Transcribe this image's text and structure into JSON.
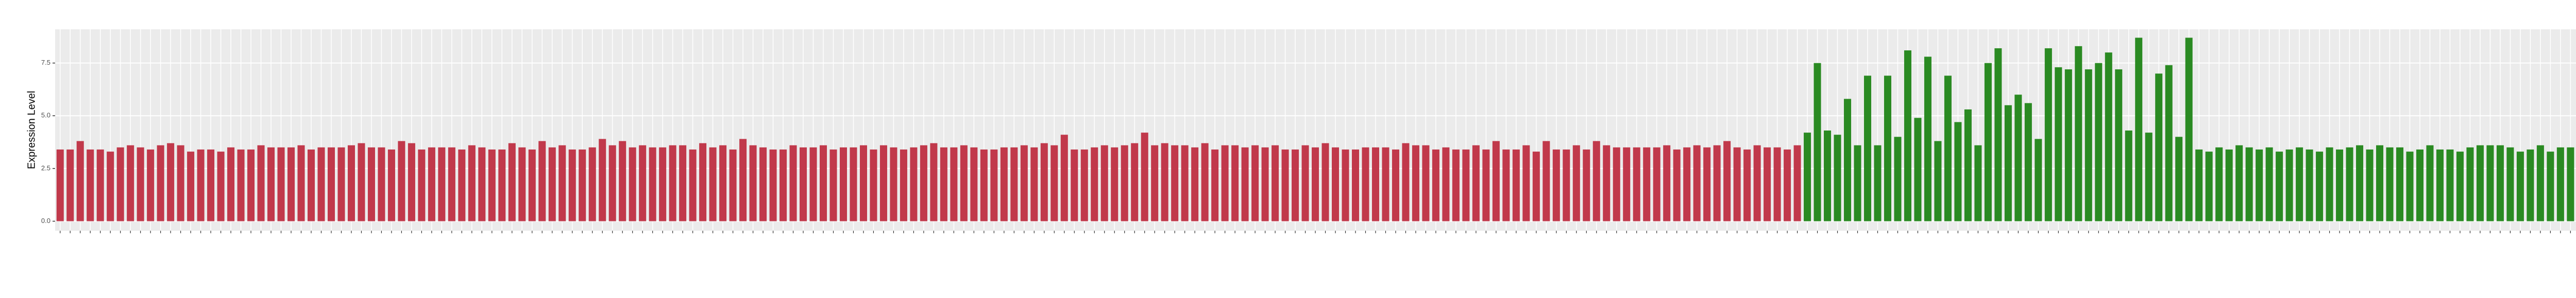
{
  "chart_data": {
    "type": "bar",
    "y_label": "Expression Level",
    "ylim": [
      -0.45,
      9.1
    ],
    "yticks": [
      {
        "value": 0,
        "label": "0.0"
      },
      2.5,
      {
        "value": 5,
        "label": "5.0"
      },
      7.5
    ],
    "grid": true,
    "values": [
      3.4,
      3.4,
      3.8,
      3.4,
      3.4,
      3.3,
      3.5,
      3.6,
      3.5,
      3.4,
      3.6,
      3.7,
      3.6,
      3.3,
      3.4,
      3.4,
      3.3,
      3.5,
      3.4,
      3.4,
      3.6,
      3.5,
      3.5,
      3.5,
      3.6,
      3.4,
      3.5,
      3.5,
      3.5,
      3.6,
      3.7,
      3.5,
      3.5,
      3.4,
      3.8,
      3.7,
      3.4,
      3.5,
      3.5,
      3.5,
      3.4,
      3.6,
      3.5,
      3.4,
      3.4,
      3.7,
      3.5,
      3.4,
      3.8,
      3.5,
      3.6,
      3.4,
      3.4,
      3.5,
      3.9,
      3.6,
      3.8,
      3.5,
      3.6,
      3.5,
      3.5,
      3.6,
      3.6,
      3.4,
      3.7,
      3.5,
      3.6,
      3.4,
      3.9,
      3.6,
      3.5,
      3.4,
      3.4,
      3.6,
      3.5,
      3.5,
      3.6,
      3.4,
      3.5,
      3.5,
      3.6,
      3.4,
      3.6,
      3.5,
      3.4,
      3.5,
      3.6,
      3.7,
      3.5,
      3.5,
      3.6,
      3.5,
      3.4,
      3.4,
      3.5,
      3.5,
      3.6,
      3.5,
      3.7,
      3.6,
      4.1,
      3.4,
      3.4,
      3.5,
      3.6,
      3.5,
      3.6,
      3.7,
      4.2,
      3.6,
      3.7,
      3.6,
      3.6,
      3.5,
      3.7,
      3.4,
      3.6,
      3.6,
      3.5,
      3.6,
      3.5,
      3.6,
      3.4,
      3.4,
      3.6,
      3.5,
      3.7,
      3.5,
      3.4,
      3.4,
      3.5,
      3.5,
      3.5,
      3.4,
      3.7,
      3.6,
      3.6,
      3.4,
      3.5,
      3.4,
      3.4,
      3.6,
      3.4,
      3.8,
      3.4,
      3.4,
      3.6,
      3.3,
      3.8,
      3.4,
      3.4,
      3.6,
      3.4,
      3.8,
      3.6,
      3.5,
      3.5,
      3.5,
      3.5,
      3.5,
      3.6,
      3.4,
      3.5,
      3.6,
      3.5,
      3.6,
      3.8,
      3.5,
      3.4,
      3.6,
      3.5,
      3.5,
      3.4,
      3.6,
      4.2,
      7.5,
      4.3,
      4.1,
      5.8,
      3.6,
      6.9,
      3.6,
      6.9,
      4.0,
      8.1,
      4.9,
      7.8,
      3.8,
      6.9,
      4.7,
      5.3,
      3.6,
      7.5,
      8.2,
      5.5,
      6.0,
      5.6,
      3.9,
      8.2,
      7.3,
      7.2,
      8.3,
      7.2,
      7.5,
      8.0,
      7.2,
      4.3,
      8.7,
      4.2,
      7.0,
      7.4,
      4.0,
      8.7,
      3.4,
      3.3,
      3.5,
      3.4,
      3.6,
      3.5,
      3.4,
      3.5,
      3.3,
      3.4,
      3.5,
      3.4,
      3.3,
      3.5,
      3.4,
      3.5,
      3.6,
      3.4,
      3.6,
      3.5,
      3.5,
      3.3,
      3.4,
      3.6,
      3.4,
      3.4,
      3.3,
      3.5,
      3.6,
      3.6,
      3.6,
      3.5,
      3.3,
      3.4,
      3.6,
      3.3,
      3.5,
      3.5,
      3.6,
      3.6,
      3.5,
      3.3,
      3.5,
      3.3,
      3.6,
      3.6
    ],
    "colors": [
      "#c1394b",
      "#c1394b",
      "#c1394b",
      "#c1394b",
      "#c1394b",
      "#c1394b",
      "#c1394b",
      "#c1394b",
      "#c1394b",
      "#c1394b",
      "#c1394b",
      "#c1394b",
      "#c1394b",
      "#c1394b",
      "#c1394b",
      "#c1394b",
      "#c1394b",
      "#c1394b",
      "#c1394b",
      "#c1394b",
      "#c1394b",
      "#c1394b",
      "#c1394b",
      "#c1394b",
      "#c1394b",
      "#c1394b",
      "#c1394b",
      "#c1394b",
      "#c1394b",
      "#c1394b",
      "#c1394b",
      "#c1394b",
      "#c1394b",
      "#c1394b",
      "#c1394b",
      "#c1394b",
      "#c1394b",
      "#c1394b",
      "#c1394b",
      "#c1394b",
      "#c1394b",
      "#c1394b",
      "#c1394b",
      "#c1394b",
      "#c1394b",
      "#c1394b",
      "#c1394b",
      "#c1394b",
      "#c1394b",
      "#c1394b",
      "#c1394b",
      "#c1394b",
      "#c1394b",
      "#c1394b",
      "#c1394b",
      "#c1394b",
      "#c1394b",
      "#c1394b",
      "#c1394b",
      "#c1394b",
      "#c1394b",
      "#c1394b",
      "#c1394b",
      "#c1394b",
      "#c1394b",
      "#c1394b",
      "#c1394b",
      "#c1394b",
      "#c1394b",
      "#c1394b",
      "#c1394b",
      "#c1394b",
      "#c1394b",
      "#c1394b",
      "#c1394b",
      "#c1394b",
      "#c1394b",
      "#c1394b",
      "#c1394b",
      "#c1394b",
      "#c1394b",
      "#c1394b",
      "#c1394b",
      "#c1394b",
      "#c1394b",
      "#c1394b",
      "#c1394b",
      "#c1394b",
      "#c1394b",
      "#c1394b",
      "#c1394b",
      "#c1394b",
      "#c1394b",
      "#c1394b",
      "#c1394b",
      "#c1394b",
      "#c1394b",
      "#c1394b",
      "#c1394b",
      "#c1394b",
      "#c1394b",
      "#c1394b",
      "#c1394b",
      "#c1394b",
      "#c1394b",
      "#c1394b",
      "#c1394b",
      "#c1394b",
      "#c1394b",
      "#c1394b",
      "#c1394b",
      "#c1394b",
      "#c1394b",
      "#c1394b",
      "#c1394b",
      "#c1394b",
      "#c1394b",
      "#c1394b",
      "#c1394b",
      "#c1394b",
      "#c1394b",
      "#c1394b",
      "#c1394b",
      "#c1394b",
      "#c1394b",
      "#c1394b",
      "#c1394b",
      "#c1394b",
      "#c1394b",
      "#c1394b",
      "#c1394b",
      "#c1394b",
      "#c1394b",
      "#c1394b",
      "#c1394b",
      "#c1394b",
      "#c1394b",
      "#c1394b",
      "#c1394b",
      "#c1394b",
      "#c1394b",
      "#c1394b",
      "#c1394b",
      "#c1394b",
      "#c1394b",
      "#c1394b",
      "#c1394b",
      "#c1394b",
      "#c1394b",
      "#c1394b",
      "#c1394b",
      "#c1394b",
      "#c1394b",
      "#c1394b",
      "#c1394b",
      "#c1394b",
      "#c1394b",
      "#c1394b",
      "#c1394b",
      "#c1394b",
      "#c1394b",
      "#c1394b",
      "#c1394b",
      "#c1394b",
      "#c1394b",
      "#c1394b",
      "#c1394b",
      "#c1394b",
      "#c1394b",
      "#c1394b",
      "#c1394b",
      "#c1394b",
      "#c1394b",
      "#c1394b",
      "#2a8a22",
      "#2a8a22",
      "#2a8a22",
      "#2a8a22",
      "#2a8a22",
      "#2a8a22",
      "#2a8a22",
      "#2a8a22",
      "#2a8a22",
      "#2a8a22",
      "#2a8a22",
      "#2a8a22",
      "#2a8a22",
      "#2a8a22",
      "#2a8a22",
      "#2a8a22",
      "#2a8a22",
      "#2a8a22",
      "#2a8a22",
      "#2a8a22",
      "#2a8a22",
      "#2a8a22",
      "#2a8a22",
      "#2a8a22",
      "#2a8a22",
      "#2a8a22",
      "#2a8a22",
      "#2a8a22",
      "#2a8a22",
      "#2a8a22",
      "#2a8a22",
      "#2a8a22",
      "#2a8a22",
      "#2a8a22",
      "#2a8a22",
      "#2a8a22",
      "#2a8a22",
      "#2a8a22",
      "#2a8a22",
      "#2a8a22",
      "#2a8a22",
      "#2a8a22",
      "#2a8a22",
      "#2a8a22",
      "#2a8a22",
      "#2a8a22",
      "#2a8a22",
      "#2a8a22",
      "#2a8a22",
      "#2a8a22",
      "#2a8a22",
      "#2a8a22",
      "#2a8a22",
      "#2a8a22",
      "#2a8a22",
      "#2a8a22",
      "#2a8a22",
      "#2a8a22",
      "#2a8a22",
      "#2a8a22",
      "#2a8a22",
      "#2a8a22",
      "#2a8a22",
      "#2a8a22",
      "#2a8a22",
      "#2a8a22",
      "#2a8a22",
      "#2a8a22",
      "#2a8a22",
      "#2a8a22",
      "#2a8a22",
      "#2a8a22",
      "#2a8a22",
      "#2a8a22",
      "#2a8a22",
      "#2a8a22",
      "#2a8a22",
      "#2a8a22",
      "#2a8a22",
      "#2a8a22",
      "#2a8a22",
      "#2a8a22",
      "#2a8a22",
      "#2a8a22",
      "#2a8a22"
    ]
  }
}
